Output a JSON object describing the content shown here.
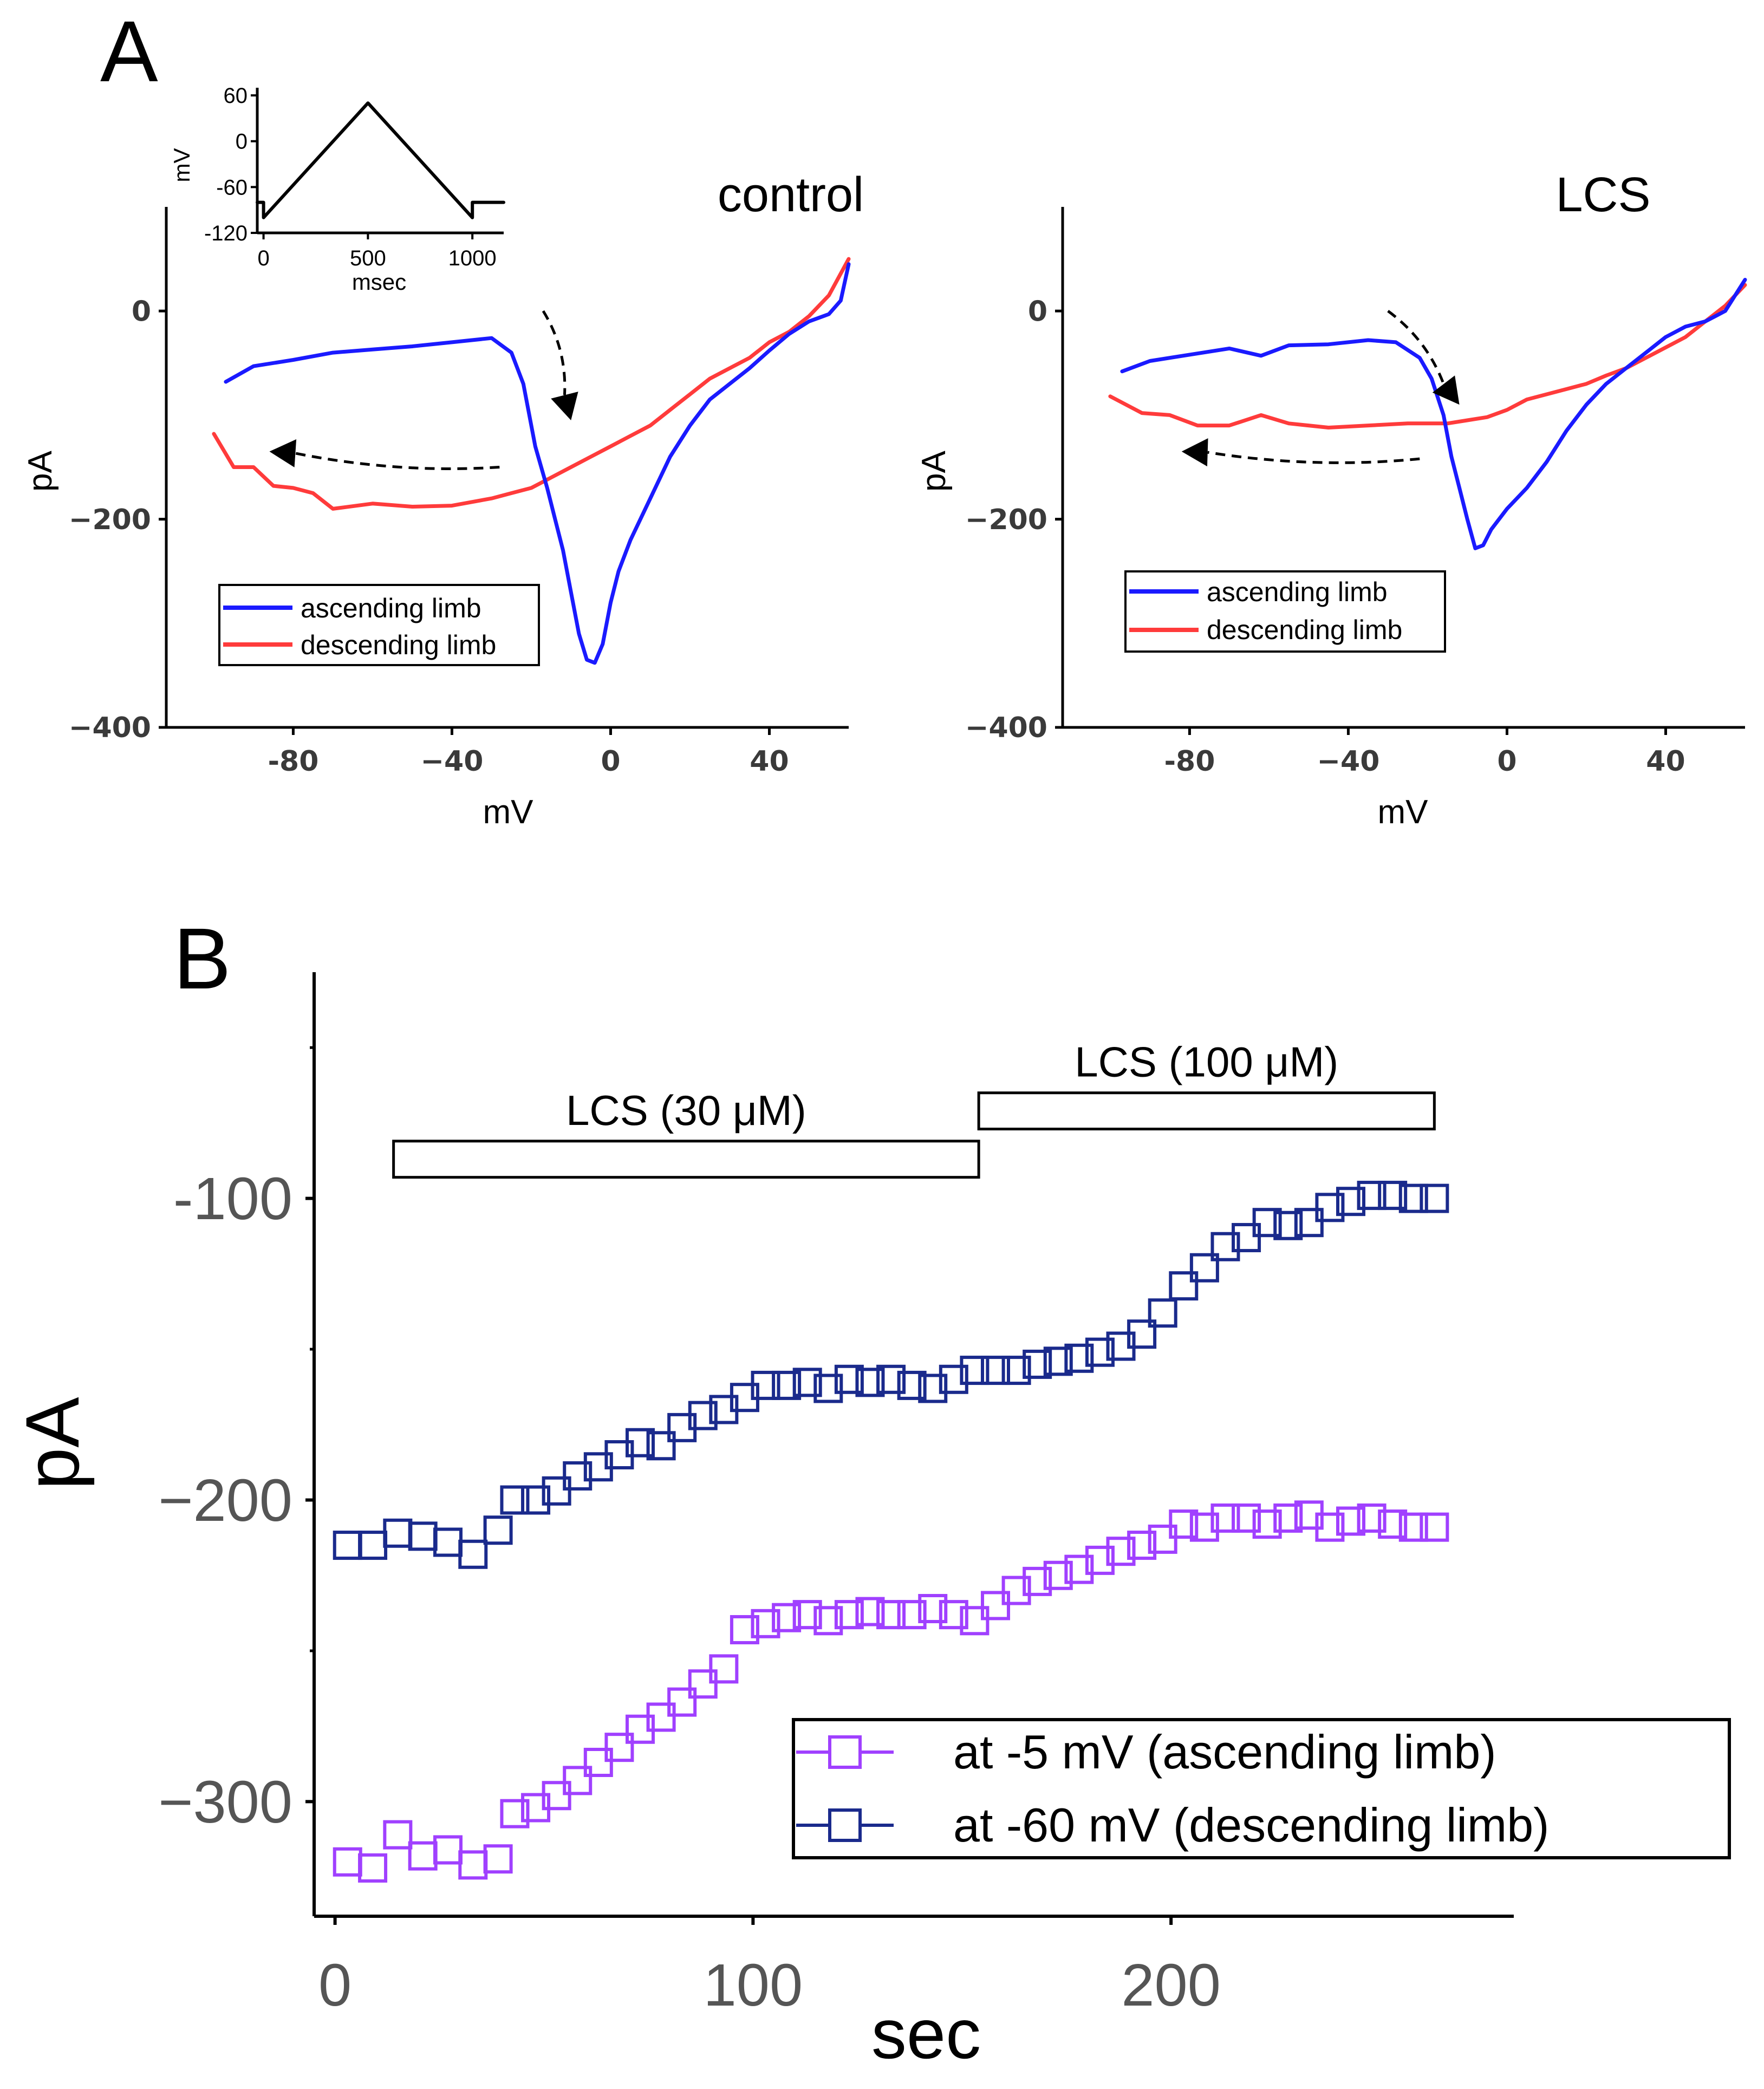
{
  "panel_labels": {
    "a": "A",
    "b": "B"
  },
  "colors": {
    "ascending": "#1a1aff",
    "descending": "#ff3b3b",
    "purple": "#a040ff",
    "navy": "#1a2a8c",
    "axis": "#000000",
    "tick_text_a": "#3a3a3a",
    "tick_text_b": "#555555"
  },
  "chart_data": [
    {
      "id": "inset_protocol",
      "type": "line",
      "title": "",
      "xlabel": "msec",
      "ylabel": "mV",
      "xlim": [
        -30,
        1150
      ],
      "ylim": [
        -120,
        70
      ],
      "xticks": [
        0,
        500,
        1000
      ],
      "xtick_labels": [
        "0",
        "500",
        "1000"
      ],
      "yticks": [
        60,
        0,
        -60,
        -120
      ],
      "ytick_labels": [
        "60",
        "0",
        "-60",
        "-120"
      ],
      "series": [
        {
          "name": "voltage ramp",
          "x": [
            -30,
            0,
            0,
            500,
            1000,
            1000,
            1150
          ],
          "y": [
            -80,
            -80,
            -100,
            50,
            -100,
            -80,
            -80
          ]
        }
      ]
    },
    {
      "id": "control",
      "type": "line",
      "title": "control",
      "xlabel": "mV",
      "ylabel": "pA",
      "xlim": [
        -112,
        60
      ],
      "ylim": [
        -400,
        100
      ],
      "xticks": [
        -80,
        -40,
        0,
        40
      ],
      "xtick_labels": [
        "-80",
        "−40",
        "0",
        "40"
      ],
      "yticks": [
        0,
        -200,
        -400
      ],
      "ytick_labels": [
        "0",
        "−200",
        "−400"
      ],
      "legend": [
        "ascending limb",
        "descending limb"
      ],
      "series": [
        {
          "name": "ascending limb",
          "x": [
            -97,
            -90,
            -80,
            -70,
            -60,
            -50,
            -40,
            -30,
            -25,
            -22,
            -19,
            -16,
            -14,
            -12,
            -10,
            -8,
            -6,
            -4,
            -2,
            0,
            2,
            5,
            10,
            15,
            20,
            25,
            30,
            35,
            40,
            45,
            50,
            55,
            58,
            60
          ],
          "y": [
            -68,
            -53,
            -47,
            -40,
            -37,
            -34,
            -30,
            -26,
            -40,
            -70,
            -130,
            -170,
            -200,
            -230,
            -270,
            -310,
            -335,
            -338,
            -320,
            -280,
            -250,
            -220,
            -180,
            -140,
            -110,
            -85,
            -70,
            -55,
            -38,
            -22,
            -10,
            -3,
            10,
            45
          ]
        },
        {
          "name": "descending limb",
          "x": [
            60,
            55,
            50,
            45,
            40,
            35,
            30,
            25,
            20,
            15,
            10,
            5,
            0,
            -5,
            -10,
            -15,
            -20,
            -25,
            -30,
            -40,
            -50,
            -60,
            -70,
            -75,
            -80,
            -85,
            -90,
            -95,
            -100
          ],
          "y": [
            50,
            15,
            -5,
            -20,
            -30,
            -45,
            -55,
            -65,
            -80,
            -95,
            -110,
            -120,
            -130,
            -140,
            -150,
            -160,
            -170,
            -175,
            -180,
            -187,
            -188,
            -185,
            -190,
            -175,
            -170,
            -168,
            -150,
            -150,
            -118
          ]
        }
      ],
      "annotations": [
        {
          "type": "dashed-arrow",
          "from": [
            -17,
            0
          ],
          "to": [
            -10,
            -105
          ]
        },
        {
          "type": "dashed-arrow",
          "from": [
            -28,
            -150
          ],
          "to": [
            -86,
            -135
          ]
        }
      ]
    },
    {
      "id": "LCS",
      "type": "line",
      "title": "LCS",
      "xlabel": "mV",
      "ylabel": "pA",
      "xlim": [
        -112,
        60
      ],
      "ylim": [
        -400,
        100
      ],
      "xticks": [
        -80,
        -40,
        0,
        40
      ],
      "xtick_labels": [
        "-80",
        "−40",
        "0",
        "40"
      ],
      "yticks": [
        0,
        -200,
        -400
      ],
      "ytick_labels": [
        "0",
        "−200",
        "−400"
      ],
      "legend": [
        "ascending limb",
        "descending limb"
      ],
      "series": [
        {
          "name": "ascending limb",
          "x": [
            -97,
            -90,
            -80,
            -70,
            -62,
            -55,
            -45,
            -35,
            -28,
            -22,
            -19,
            -16,
            -14,
            -12,
            -10,
            -8,
            -6,
            -4,
            0,
            5,
            10,
            15,
            20,
            25,
            30,
            35,
            40,
            45,
            50,
            55,
            60
          ],
          "y": [
            -58,
            -48,
            -42,
            -36,
            -43,
            -33,
            -32,
            -28,
            -30,
            -45,
            -65,
            -100,
            -140,
            -170,
            -200,
            -228,
            -225,
            -210,
            -190,
            -170,
            -145,
            -115,
            -90,
            -70,
            -55,
            -40,
            -25,
            -15,
            -10,
            0,
            30
          ]
        },
        {
          "name": "descending limb",
          "x": [
            60,
            55,
            50,
            45,
            40,
            35,
            30,
            25,
            20,
            15,
            10,
            5,
            0,
            -5,
            -10,
            -15,
            -25,
            -35,
            -45,
            -55,
            -62,
            -70,
            -78,
            -85,
            -92,
            -100
          ],
          "y": [
            25,
            5,
            -10,
            -25,
            -35,
            -45,
            -55,
            -62,
            -70,
            -75,
            -80,
            -85,
            -95,
            -102,
            -105,
            -108,
            -108,
            -110,
            -112,
            -108,
            -100,
            -110,
            -110,
            -100,
            -98,
            -82
          ]
        }
      ],
      "annotations": [
        {
          "type": "dashed-arrow",
          "from": [
            -30,
            0
          ],
          "to": [
            -12,
            -90
          ]
        },
        {
          "type": "dashed-arrow",
          "from": [
            -22,
            -142
          ],
          "to": [
            -82,
            -135
          ]
        }
      ]
    },
    {
      "id": "time_course",
      "type": "scatter",
      "title": "",
      "xlabel": "sec",
      "ylabel": "pA",
      "xlim": [
        -5,
        282
      ],
      "ylim": [
        -338,
        -25
      ],
      "xticks": [
        0,
        100,
        200
      ],
      "xtick_labels": [
        "0",
        "100",
        "200"
      ],
      "yticks": [
        -100,
        -200,
        -300
      ],
      "ytick_labels": [
        "-100",
        "−200",
        "−300"
      ],
      "bars": [
        {
          "label": "LCS (30 μM)",
          "x0": 14,
          "x1": 154,
          "y_top": -81,
          "y_bottom": -93
        },
        {
          "label": "LCS (100 μM)",
          "x0": 154,
          "x1": 263,
          "y_top": -65,
          "y_bottom": -77
        }
      ],
      "legend": [
        "at -5 mV (ascending limb)",
        "at -60 mV (descending limb)"
      ],
      "series": [
        {
          "name": "at -5 mV (ascending limb)",
          "x": [
            3,
            9,
            15,
            21,
            27,
            33,
            39,
            43,
            48,
            53,
            58,
            63,
            68,
            73,
            78,
            83,
            88,
            93,
            98,
            103,
            108,
            113,
            118,
            123,
            128,
            133,
            138,
            143,
            148,
            153,
            158,
            163,
            168,
            173,
            178,
            183,
            188,
            193,
            198,
            203,
            208,
            213,
            218,
            223,
            228,
            233,
            238,
            243,
            248,
            253,
            258,
            263
          ],
          "y": [
            -320,
            -322,
            -311,
            -318,
            -316,
            -321,
            -319,
            -304,
            -302,
            -298,
            -293,
            -287,
            -282,
            -276,
            -272,
            -267,
            -261,
            -256,
            -243,
            -241,
            -239,
            -238,
            -240,
            -238,
            -237,
            -238,
            -238,
            -236,
            -238,
            -240,
            -235,
            -230,
            -227,
            -225,
            -223,
            -220,
            -217,
            -215,
            -213,
            -208,
            -209,
            -206,
            -206,
            -208,
            -206,
            -205,
            -209,
            -207,
            -206,
            -208,
            -209,
            -209
          ]
        },
        {
          "name": "at -60 mV (descending limb)",
          "x": [
            3,
            9,
            15,
            21,
            27,
            33,
            39,
            43,
            48,
            53,
            58,
            63,
            68,
            73,
            78,
            83,
            88,
            93,
            98,
            103,
            108,
            113,
            118,
            123,
            128,
            133,
            138,
            143,
            148,
            153,
            158,
            163,
            168,
            173,
            178,
            183,
            188,
            193,
            198,
            203,
            208,
            213,
            218,
            223,
            228,
            233,
            238,
            243,
            248,
            253,
            258,
            263
          ],
          "y": [
            -215,
            -215,
            -211,
            -212,
            -214,
            -218,
            -210,
            -200,
            -200,
            -197,
            -192,
            -189,
            -185,
            -181,
            -182,
            -176,
            -172,
            -170,
            -166,
            -162,
            -162,
            -161,
            -163,
            -160,
            -161,
            -160,
            -162,
            -163,
            -160,
            -157,
            -157,
            -157,
            -155,
            -154,
            -153,
            -151,
            -149,
            -145,
            -138,
            -129,
            -123,
            -116,
            -113,
            -108,
            -109,
            -108,
            -103,
            -101,
            -99,
            -99,
            -100,
            -100
          ]
        }
      ]
    }
  ]
}
